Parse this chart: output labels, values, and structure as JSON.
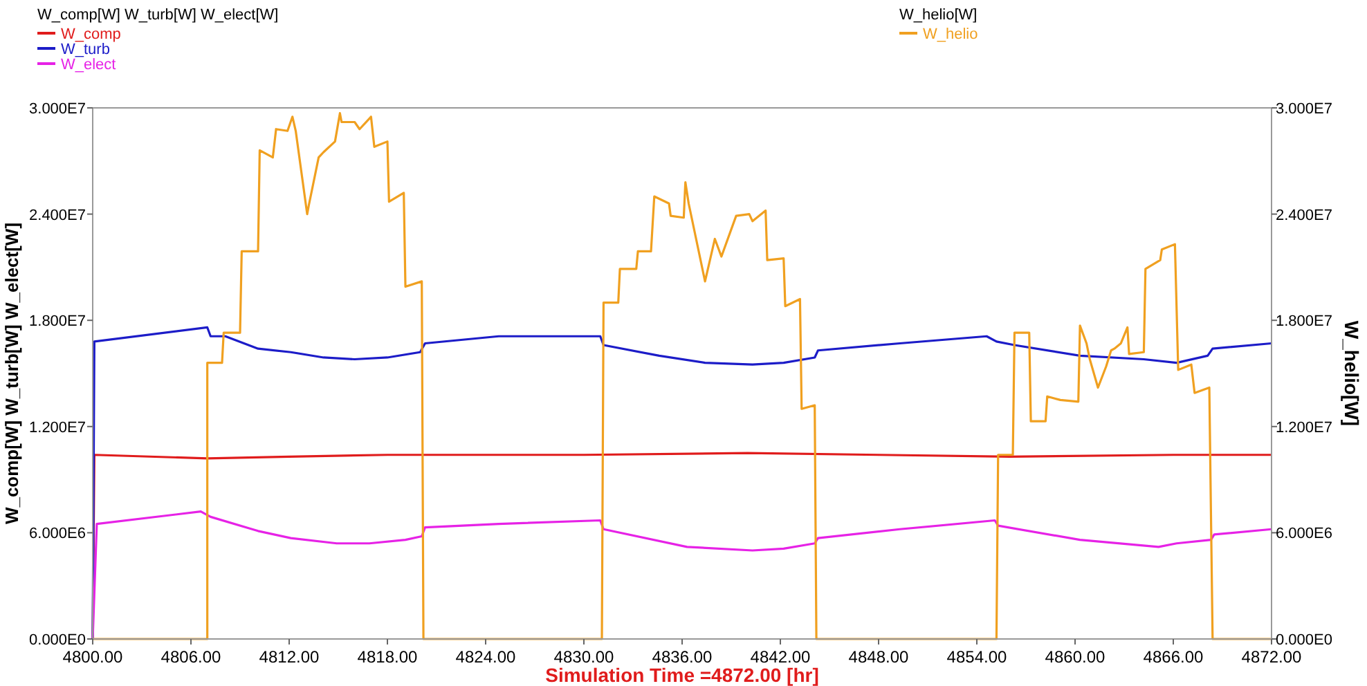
{
  "chart_data": {
    "type": "line",
    "xlabel": "Simulation Time =4872.00 [hr]",
    "ylabel": "W_comp[W] W_turb[W] W_elect[W]",
    "y2label": "W_helio[W]",
    "legend": "top",
    "grid": false,
    "marker": "none",
    "line_style": "solid",
    "xlim": [
      4800,
      4872
    ],
    "xticks": [
      {
        "value": 4800,
        "label": "4800.00"
      },
      {
        "value": 4806,
        "label": "4806.00"
      },
      {
        "value": 4812,
        "label": "4812.00"
      },
      {
        "value": 4818,
        "label": "4818.00"
      },
      {
        "value": 4824,
        "label": "4824.00"
      },
      {
        "value": 4830,
        "label": "4830.00"
      },
      {
        "value": 4836,
        "label": "4836.00"
      },
      {
        "value": 4842,
        "label": "4842.00"
      },
      {
        "value": 4848,
        "label": "4848.00"
      },
      {
        "value": 4854,
        "label": "4854.00"
      },
      {
        "value": 4860,
        "label": "4860.00"
      },
      {
        "value": 4866,
        "label": "4866.00"
      },
      {
        "value": 4872,
        "label": "4872.00"
      }
    ],
    "ylim": [
      0,
      30000000
    ],
    "yticks": [
      {
        "value": 0,
        "label": "0.000E0"
      },
      {
        "value": 6000000,
        "label": "6.000E6"
      },
      {
        "value": 12000000,
        "label": "1.200E7"
      },
      {
        "value": 18000000,
        "label": "1.800E7"
      },
      {
        "value": 24000000,
        "label": "2.400E7"
      },
      {
        "value": 30000000,
        "label": "3.000E7"
      }
    ],
    "y2lim": [
      0,
      30000000
    ],
    "y2ticks": [
      {
        "value": 0,
        "label": "0.000E0"
      },
      {
        "value": 6000000,
        "label": "6.000E6"
      },
      {
        "value": 12000000,
        "label": "1.200E7"
      },
      {
        "value": 18000000,
        "label": "1.800E7"
      },
      {
        "value": 24000000,
        "label": "2.400E7"
      },
      {
        "value": 30000000,
        "label": "3.000E7"
      }
    ],
    "series": [
      {
        "name": "W_comp",
        "color": "#e01c1c",
        "x": [
          4800,
          4800.1,
          4807,
          4812,
          4818,
          4830,
          4840,
          4848,
          4856,
          4866,
          4872
        ],
        "values": [
          0,
          10400000,
          10200000,
          10300000,
          10400000,
          10400000,
          10500000,
          10400000,
          10300000,
          10400000,
          10400000
        ]
      },
      {
        "name": "W_turb",
        "color": "#1c1cc8",
        "x": [
          4800,
          4800.1,
          4807,
          4807.2,
          4808.1,
          4810.1,
          4812.1,
          4814.1,
          4816,
          4818,
          4820,
          4820.3,
          4824.8,
          4831,
          4831.2,
          4834.6,
          4837.4,
          4840.3,
          4842.2,
          4844.1,
          4844.3,
          4849.3,
          4854.6,
          4855.2,
          4856.3,
          4860.3,
          4864.2,
          4866.2,
          4868.1,
          4868.4,
          4872
        ],
        "values": [
          0,
          16800000,
          17600000,
          17100000,
          17100000,
          16400000,
          16200000,
          15900000,
          15800000,
          15900000,
          16200000,
          16700000,
          17100000,
          17100000,
          16600000,
          16000000,
          15600000,
          15500000,
          15600000,
          15900000,
          16300000,
          16700000,
          17100000,
          16800000,
          16600000,
          16000000,
          15800000,
          15600000,
          16000000,
          16400000,
          16700000
        ]
      },
      {
        "name": "W_elect",
        "color": "#e622e6",
        "x": [
          4800,
          4800.25,
          4806.6,
          4807.2,
          4810.1,
          4812.1,
          4814.9,
          4816.9,
          4819.1,
          4820.1,
          4820.3,
          4824.8,
          4831,
          4831.2,
          4836.3,
          4840.3,
          4842.2,
          4844.1,
          4844.3,
          4849.3,
          4855.1,
          4855.3,
          4860.3,
          4865.1,
          4866.2,
          4868.3,
          4868.5,
          4872
        ],
        "values": [
          0,
          6500000,
          7200000,
          6900000,
          6100000,
          5700000,
          5400000,
          5400000,
          5600000,
          5800000,
          6300000,
          6500000,
          6700000,
          6200000,
          5200000,
          5000000,
          5100000,
          5400000,
          5700000,
          6200000,
          6700000,
          6400000,
          5600000,
          5200000,
          5400000,
          5600000,
          5900000,
          6200000
        ]
      },
      {
        "name": "W_helio",
        "color": "#f0a020",
        "axis": "y2",
        "x": [
          4800,
          4807,
          4807,
          4807.9,
          4808,
          4809,
          4809.1,
          4810.1,
          4810.2,
          4811,
          4811.2,
          4811.9,
          4812.2,
          4812.4,
          4813.1,
          4813.2,
          4813.8,
          4814.1,
          4814.8,
          4815.1,
          4815.2,
          4816,
          4816.3,
          4817,
          4817.2,
          4818,
          4818.1,
          4819,
          4819.1,
          4820.1,
          4820.2,
          4831.1,
          4831.2,
          4832.1,
          4832.2,
          4833.2,
          4833.3,
          4834.1,
          4834.3,
          4835.2,
          4835.3,
          4836.1,
          4836.2,
          4836.4,
          4837.4,
          4838,
          4838.4,
          4839.3,
          4840.1,
          4840.3,
          4841.1,
          4841.2,
          4842.2,
          4842.3,
          4843.2,
          4843.3,
          4844.1,
          4844.2,
          4855.2,
          4855.3,
          4856.2,
          4856.3,
          4857.2,
          4857.3,
          4858.2,
          4858.3,
          4859.1,
          4860.2,
          4860.3,
          4860.7,
          4860.9,
          4861.4,
          4861.9,
          4862.2,
          4862.4,
          4862.8,
          4863.2,
          4863.3,
          4864.2,
          4864.3,
          4865.2,
          4865.3,
          4866.1,
          4866.3,
          4867.1,
          4867.3,
          4868.2,
          4868.4,
          4872
        ],
        "values": [
          0,
          0,
          15600000,
          15600000,
          17300000,
          17300000,
          21900000,
          21900000,
          27600000,
          27200000,
          28800000,
          28700000,
          29500000,
          28700000,
          24000000,
          24500000,
          27200000,
          27500000,
          28100000,
          29700000,
          29200000,
          29200000,
          28800000,
          29500000,
          27800000,
          28100000,
          24700000,
          25200000,
          19900000,
          20200000,
          0,
          0,
          19000000,
          19000000,
          20900000,
          20900000,
          21900000,
          21900000,
          25000000,
          24600000,
          23900000,
          23800000,
          25800000,
          24600000,
          20200000,
          22600000,
          21600000,
          23900000,
          24000000,
          23600000,
          24200000,
          21400000,
          21500000,
          18800000,
          19200000,
          13000000,
          13200000,
          0,
          0,
          10400000,
          10400000,
          17300000,
          17300000,
          12300000,
          12300000,
          13700000,
          13500000,
          13400000,
          17700000,
          16700000,
          15800000,
          14200000,
          15400000,
          16300000,
          16400000,
          16700000,
          17600000,
          16100000,
          16200000,
          20900000,
          21400000,
          22000000,
          22300000,
          15200000,
          15500000,
          13900000,
          14200000,
          0,
          0
        ]
      }
    ]
  }
}
